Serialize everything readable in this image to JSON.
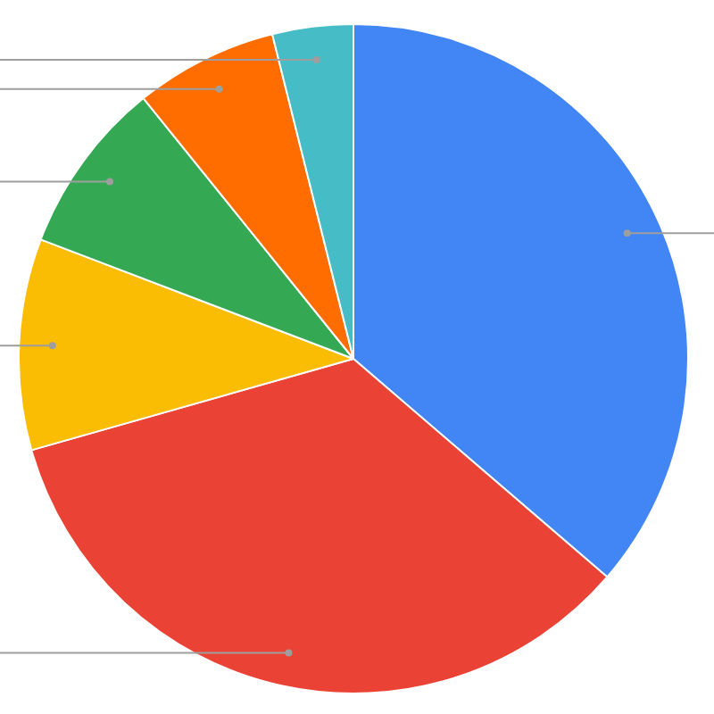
{
  "chart_data": {
    "type": "pie",
    "categories": [
      null,
      null,
      null,
      null,
      null,
      null
    ],
    "values": [
      36.3,
      34.3,
      10.2,
      8.4,
      6.9,
      3.9
    ],
    "colors": [
      "#4285f4",
      "#ea4335",
      "#fbbc04",
      "#34a853",
      "#ff6d01",
      "#46bdc6"
    ],
    "legend": false
  }
}
